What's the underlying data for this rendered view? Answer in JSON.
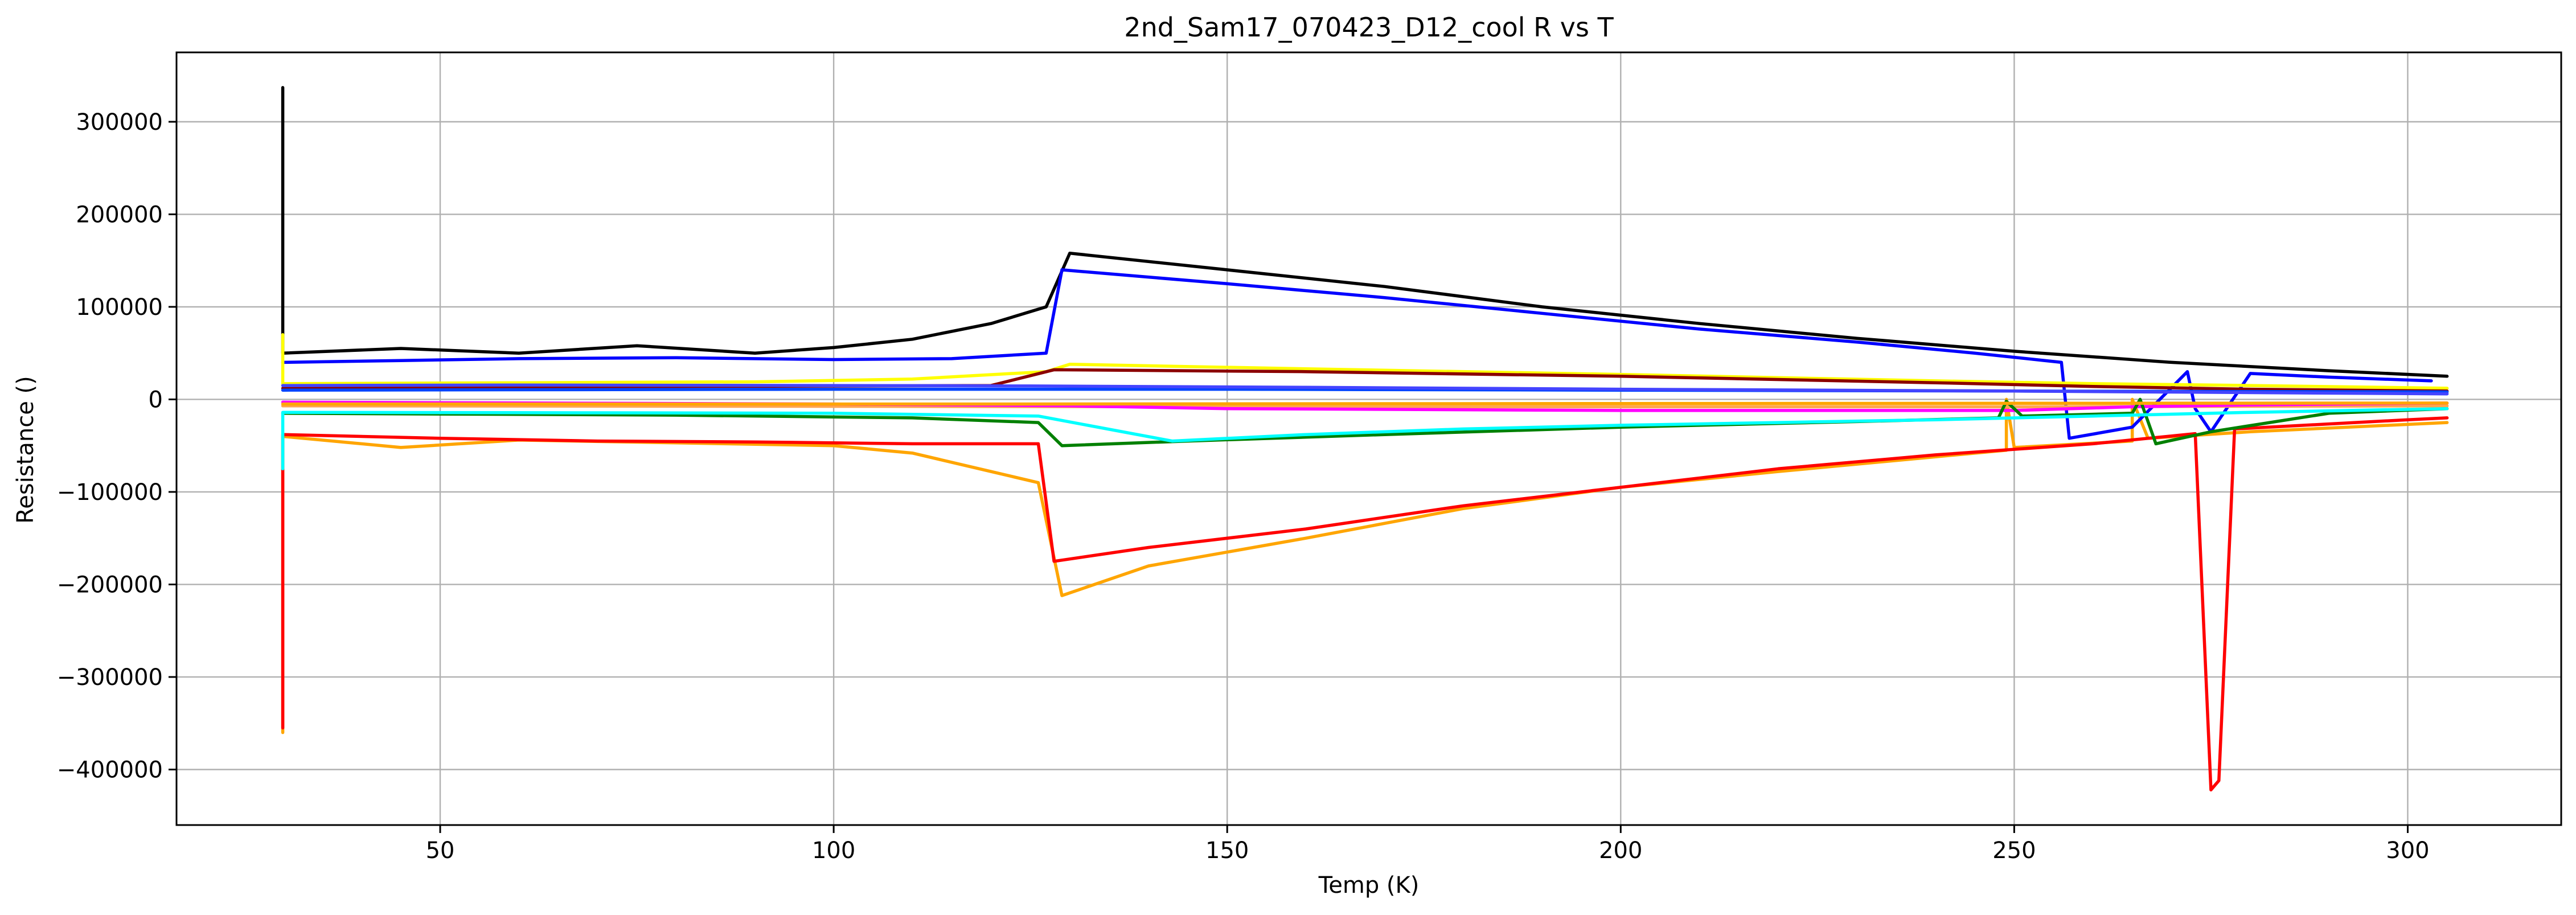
{
  "chart_data": {
    "type": "line",
    "title": "2nd_Sam17_070423_D12_cool R vs T",
    "xlabel": "Temp (K)",
    "ylabel": "Resistance ()",
    "xlim": [
      16.5,
      319.5
    ],
    "ylim": [
      -460000,
      375000
    ],
    "xticks": [
      50,
      100,
      150,
      200,
      250,
      300
    ],
    "yticks": [
      -400000,
      -300000,
      -200000,
      -100000,
      0,
      100000,
      200000,
      300000
    ],
    "grid": true,
    "series": [
      {
        "color": "#ffa500",
        "points": [
          [
            30,
            -360000
          ],
          [
            30,
            -40000
          ],
          [
            45,
            -52000
          ],
          [
            60,
            -44000
          ],
          [
            80,
            -47000
          ],
          [
            100,
            -50000
          ],
          [
            110,
            -58000
          ],
          [
            120,
            -78000
          ],
          [
            126,
            -90000
          ],
          [
            129,
            -212000
          ],
          [
            140,
            -180000
          ],
          [
            160,
            -150000
          ],
          [
            180,
            -118000
          ],
          [
            200,
            -95000
          ],
          [
            220,
            -78000
          ],
          [
            240,
            -62000
          ],
          [
            249,
            -55000
          ],
          [
            249,
            0
          ],
          [
            250,
            -52000
          ],
          [
            265,
            -45000
          ],
          [
            265,
            0
          ],
          [
            267,
            -42000
          ],
          [
            280,
            -35000
          ],
          [
            305,
            -25000
          ]
        ]
      },
      {
        "color": "#ff0000",
        "points": [
          [
            30,
            -355000
          ],
          [
            30,
            -38000
          ],
          [
            50,
            -42000
          ],
          [
            70,
            -45000
          ],
          [
            90,
            -46000
          ],
          [
            110,
            -48000
          ],
          [
            126,
            -48000
          ],
          [
            128,
            -175000
          ],
          [
            140,
            -160000
          ],
          [
            160,
            -140000
          ],
          [
            180,
            -115000
          ],
          [
            200,
            -95000
          ],
          [
            220,
            -75000
          ],
          [
            240,
            -60000
          ],
          [
            260,
            -48000
          ],
          [
            273,
            -37000
          ],
          [
            275,
            -422000
          ],
          [
            276,
            -412000
          ],
          [
            278,
            -32000
          ],
          [
            300,
            -22000
          ],
          [
            305,
            -20000
          ]
        ]
      },
      {
        "color": "#000000",
        "points": [
          [
            30,
            337000
          ],
          [
            30,
            50000
          ],
          [
            45,
            55000
          ],
          [
            60,
            50000
          ],
          [
            75,
            58000
          ],
          [
            90,
            50000
          ],
          [
            100,
            56000
          ],
          [
            110,
            65000
          ],
          [
            120,
            82000
          ],
          [
            127,
            100000
          ],
          [
            130,
            158000
          ],
          [
            150,
            140000
          ],
          [
            170,
            122000
          ],
          [
            190,
            100000
          ],
          [
            210,
            82000
          ],
          [
            230,
            66000
          ],
          [
            250,
            52000
          ],
          [
            270,
            40000
          ],
          [
            290,
            31000
          ],
          [
            305,
            25000
          ]
        ]
      },
      {
        "color": "#0000ff",
        "points": [
          [
            30,
            40000
          ],
          [
            45,
            42000
          ],
          [
            60,
            44000
          ],
          [
            80,
            45000
          ],
          [
            100,
            43000
          ],
          [
            115,
            44000
          ],
          [
            127,
            50000
          ],
          [
            129,
            140000
          ],
          [
            150,
            125000
          ],
          [
            170,
            110000
          ],
          [
            190,
            93000
          ],
          [
            210,
            76000
          ],
          [
            230,
            62000
          ],
          [
            245,
            50000
          ],
          [
            256,
            40000
          ],
          [
            257,
            -42000
          ],
          [
            265,
            -30000
          ],
          [
            272,
            30000
          ],
          [
            273,
            -10000
          ],
          [
            275,
            -35000
          ],
          [
            280,
            28000
          ],
          [
            290,
            24000
          ],
          [
            303,
            20000
          ]
        ]
      },
      {
        "color": "#ffff00",
        "points": [
          [
            30,
            70000
          ],
          [
            30,
            17000
          ],
          [
            60,
            18000
          ],
          [
            90,
            19000
          ],
          [
            110,
            22000
          ],
          [
            127,
            30000
          ],
          [
            130,
            38000
          ],
          [
            160,
            33000
          ],
          [
            200,
            27000
          ],
          [
            240,
            20000
          ],
          [
            260,
            17000
          ],
          [
            280,
            15000
          ],
          [
            305,
            12000
          ]
        ]
      },
      {
        "color": "#8b0000",
        "points": [
          [
            30,
            12000
          ],
          [
            80,
            14000
          ],
          [
            120,
            15000
          ],
          [
            128,
            32000
          ],
          [
            160,
            30000
          ],
          [
            200,
            25000
          ],
          [
            240,
            18000
          ],
          [
            260,
            14000
          ],
          [
            280,
            11000
          ],
          [
            305,
            9000
          ]
        ]
      },
      {
        "color": "#0044ff",
        "points": [
          [
            30,
            10000
          ],
          [
            100,
            11000
          ],
          [
            150,
            11000
          ],
          [
            200,
            10000
          ],
          [
            250,
            9000
          ],
          [
            305,
            8000
          ]
        ]
      },
      {
        "color": "#ffa54f",
        "points": [
          [
            30,
            -7000
          ],
          [
            100,
            -7500
          ],
          [
            150,
            -8000
          ],
          [
            200,
            -8000
          ],
          [
            250,
            -8000
          ],
          [
            305,
            -7000
          ]
        ]
      },
      {
        "color": "#ff00ff",
        "points": [
          [
            30,
            -3000
          ],
          [
            100,
            -5000
          ],
          [
            130,
            -7000
          ],
          [
            150,
            -10000
          ],
          [
            200,
            -12000
          ],
          [
            250,
            -12000
          ],
          [
            265,
            -8000
          ],
          [
            280,
            -6000
          ],
          [
            305,
            -4000
          ]
        ]
      },
      {
        "color": "#008000",
        "points": [
          [
            30,
            -15000
          ],
          [
            80,
            -17000
          ],
          [
            110,
            -20000
          ],
          [
            126,
            -25000
          ],
          [
            129,
            -50000
          ],
          [
            145,
            -45000
          ],
          [
            170,
            -38000
          ],
          [
            200,
            -30000
          ],
          [
            230,
            -24000
          ],
          [
            248,
            -20000
          ],
          [
            249,
            -2000
          ],
          [
            251,
            -18000
          ],
          [
            265,
            -15000
          ],
          [
            266,
            0
          ],
          [
            268,
            -48000
          ],
          [
            275,
            -35000
          ],
          [
            290,
            -15000
          ],
          [
            305,
            -10000
          ]
        ]
      },
      {
        "color": "#00ffff",
        "points": [
          [
            30,
            -75000
          ],
          [
            30,
            -14000
          ],
          [
            70,
            -14500
          ],
          [
            100,
            -15000
          ],
          [
            126,
            -18000
          ],
          [
            143,
            -45000
          ],
          [
            160,
            -38000
          ],
          [
            180,
            -32000
          ],
          [
            200,
            -28000
          ],
          [
            220,
            -25000
          ],
          [
            240,
            -22000
          ],
          [
            260,
            -18000
          ],
          [
            280,
            -14000
          ],
          [
            305,
            -10000
          ]
        ]
      },
      {
        "color": "#ffa500",
        "points": [
          [
            30,
            -5000
          ],
          [
            120,
            -5000
          ],
          [
            200,
            -4500
          ],
          [
            305,
            -4000
          ]
        ]
      },
      {
        "color": "#4444ff",
        "points": [
          [
            30,
            15000
          ],
          [
            60,
            15500
          ],
          [
            100,
            15000
          ],
          [
            125,
            14500
          ],
          [
            160,
            13000
          ],
          [
            200,
            11000
          ],
          [
            250,
            9000
          ],
          [
            305,
            6000
          ]
        ]
      }
    ]
  }
}
